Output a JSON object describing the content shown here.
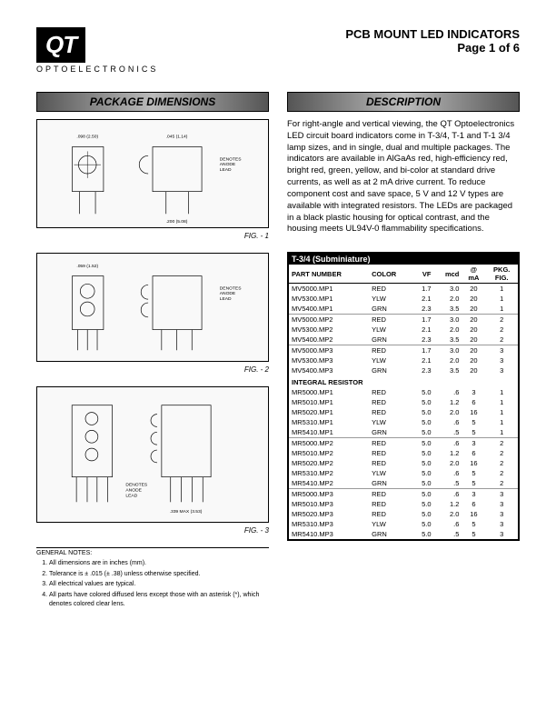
{
  "logo": {
    "main": "QT",
    "sub": "OPTOELECTRONICS"
  },
  "title": "PCB MOUNT LED INDICATORS",
  "page": "Page 1 of 6",
  "sections": {
    "pkg_dim": "PACKAGE DIMENSIONS",
    "desc": "DESCRIPTION"
  },
  "figs": {
    "f1": "FIG. - 1",
    "f2": "FIG. - 2",
    "f3": "FIG. - 3"
  },
  "description": "For right-angle and vertical viewing, the QT Optoelectronics LED circuit board indicators come in T-3/4, T-1 and T-1 3/4 lamp sizes, and in single, dual and multiple packages. The indicators are available in AlGaAs red, high-efficiency red, bright red, green, yellow, and bi-color at standard drive currents, as well as at 2 mA drive current. To reduce component cost and save space, 5 V and 12 V types are available with integrated resistors. The LEDs are packaged in a black plastic housing for optical contrast, and the housing meets UL94V-0 flammability specifications.",
  "table": {
    "title": "T-3/4 (Subminiature)",
    "headers": [
      "PART NUMBER",
      "COLOR",
      "VF",
      "mcd",
      "@\nmA",
      "PKG.\nFIG."
    ],
    "groups": [
      {
        "rows": [
          [
            "MV5000.MP1",
            "RED",
            "1.7",
            "3.0",
            "20",
            "1"
          ],
          [
            "MV5300.MP1",
            "YLW",
            "2.1",
            "2.0",
            "20",
            "1"
          ],
          [
            "MV5400.MP1",
            "GRN",
            "2.3",
            "3.5",
            "20",
            "1"
          ]
        ]
      },
      {
        "rows": [
          [
            "MV5000.MP2",
            "RED",
            "1.7",
            "3.0",
            "20",
            "2"
          ],
          [
            "MV5300.MP2",
            "YLW",
            "2.1",
            "2.0",
            "20",
            "2"
          ],
          [
            "MV5400.MP2",
            "GRN",
            "2.3",
            "3.5",
            "20",
            "2"
          ]
        ]
      },
      {
        "rows": [
          [
            "MV5000.MP3",
            "RED",
            "1.7",
            "3.0",
            "20",
            "3"
          ],
          [
            "MV5300.MP3",
            "YLW",
            "2.1",
            "2.0",
            "20",
            "3"
          ],
          [
            "MV5400.MP3",
            "GRN",
            "2.3",
            "3.5",
            "20",
            "3"
          ]
        ]
      },
      {
        "subheader": "INTEGRAL RESISTOR",
        "rows": [
          [
            "MR5000.MP1",
            "RED",
            "5.0",
            ".6",
            "3",
            "1"
          ],
          [
            "MR5010.MP1",
            "RED",
            "5.0",
            "1.2",
            "6",
            "1"
          ],
          [
            "MR5020.MP1",
            "RED",
            "5.0",
            "2.0",
            "16",
            "1"
          ],
          [
            "MR5310.MP1",
            "YLW",
            "5.0",
            ".6",
            "5",
            "1"
          ],
          [
            "MR5410.MP1",
            "GRN",
            "5.0",
            ".5",
            "5",
            "1"
          ]
        ]
      },
      {
        "rows": [
          [
            "MR5000.MP2",
            "RED",
            "5.0",
            ".6",
            "3",
            "2"
          ],
          [
            "MR5010.MP2",
            "RED",
            "5.0",
            "1.2",
            "6",
            "2"
          ],
          [
            "MR5020.MP2",
            "RED",
            "5.0",
            "2.0",
            "16",
            "2"
          ],
          [
            "MR5310.MP2",
            "YLW",
            "5.0",
            ".6",
            "5",
            "2"
          ],
          [
            "MR5410.MP2",
            "GRN",
            "5.0",
            ".5",
            "5",
            "2"
          ]
        ]
      },
      {
        "rows": [
          [
            "MR5000.MP3",
            "RED",
            "5.0",
            ".6",
            "3",
            "3"
          ],
          [
            "MR5010.MP3",
            "RED",
            "5.0",
            "1.2",
            "6",
            "3"
          ],
          [
            "MR5020.MP3",
            "RED",
            "5.0",
            "2.0",
            "16",
            "3"
          ],
          [
            "MR5310.MP3",
            "YLW",
            "5.0",
            ".6",
            "5",
            "3"
          ],
          [
            "MR5410.MP3",
            "GRN",
            "5.0",
            ".5",
            "5",
            "3"
          ]
        ]
      }
    ]
  },
  "notes": {
    "title": "GENERAL NOTES:",
    "items": [
      "All dimensions are in inches (mm).",
      "Tolerance is ± .015 (± .38) unless otherwise specified.",
      "All electrical values are typical.",
      "All parts have colored diffused lens except those with an asterisk (*), which denotes colored clear lens."
    ]
  }
}
